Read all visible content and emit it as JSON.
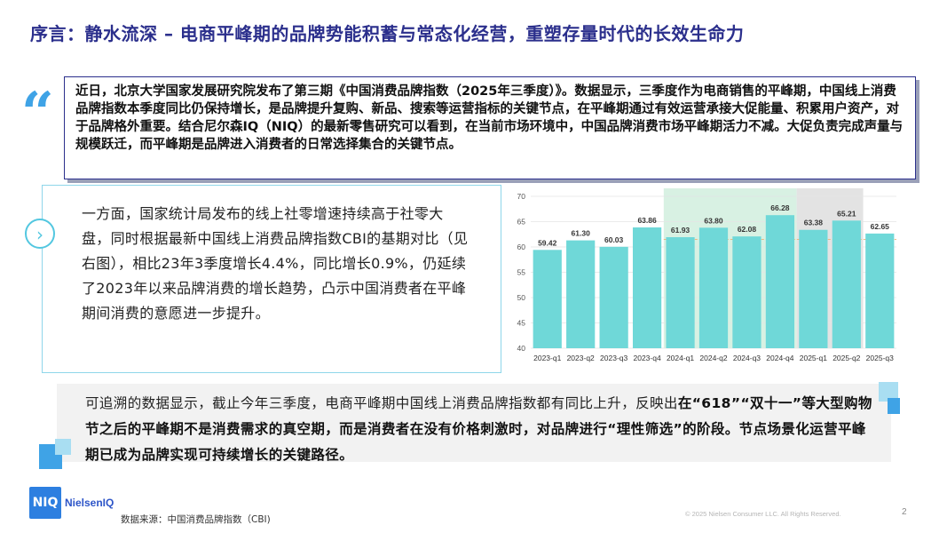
{
  "title": "序言：静水流深 – 电商平峰期的品牌势能积蓄与常态化经营，重塑存量时代的长效生命力",
  "quote": {
    "text": "近日，北京大学国家发展研究院发布了第三期《中国消费品牌指数（2025年三季度）》。数据显示，三季度作为电商销售的平峰期，中国线上消费品牌指数本季度同比仍保持增长，是品牌提升复购、新品、搜索等运营指标的关键节点，在平峰期通过有效运营承接大促能量、积累用户资产，对于品牌格外重要。结合尼尔森IQ（NIQ）的最新零售研究可以看到，在当前市场环境中，中国品牌消费市场平峰期活力不减。大促负责完成声量与规模跃迁，而平峰期是品牌进入消费者的日常选择集合的关键节点。",
    "icon": "quote-icon"
  },
  "left_panel": {
    "text": "一方面，国家统计局发布的线上社零增速持续高于社零大盘，同时根据最新中国线上消费品牌指数CBI的基期对比（见右图），相比23年3季度增长4.4%，同比增长0.9%，仍延续了2023年以来品牌消费的增长趋势，凸示中国消费者在平峰期间消费的意愿进一步提升。",
    "icon": "chevron-right-icon"
  },
  "chart_data": {
    "type": "bar",
    "categories": [
      "2023-q1",
      "2023-q2",
      "2023-q3",
      "2023-q4",
      "2024-q1",
      "2024-q2",
      "2024-q3",
      "2024-q4",
      "2025-q1",
      "2025-q2",
      "2025-q3"
    ],
    "values": [
      59.42,
      61.3,
      60.03,
      63.86,
      61.93,
      63.8,
      62.08,
      66.28,
      63.38,
      65.21,
      62.65
    ],
    "labels": [
      "59.42",
      "61.30",
      "60.03",
      "63.86",
      "61.93",
      "63.80",
      "62.08",
      "66.28",
      "63.38",
      "65.21",
      "62.65"
    ],
    "ylim": [
      40,
      70
    ],
    "yticks": [
      40,
      45,
      50,
      55,
      60,
      65,
      70
    ],
    "bar_color": "#6fd8d8",
    "highlight_2024_color": "#d8f1e3",
    "highlight_2025_color": "#e3e3e3",
    "reference_line_color": "#f0b070",
    "grid": true,
    "title": "",
    "xlabel": "",
    "ylabel": ""
  },
  "bottom": {
    "prefix": "可追溯的数据显示，截止今年三季度，电商平峰期中国线上消费品牌指数都有同比上升，反映出",
    "bold": "在“618”“双十一”等大型购物节之后的平峰期不是消费需求的真空期，而是消费者在没有价格刺激时，对品牌进行“理性筛选”的阶段。节点场景化运营平峰期已成为品牌实现可持续增长的关键路径。"
  },
  "footer": {
    "logo_mark": "NIQ",
    "logo_text": "NielsenIQ",
    "source": "数据来源：中国消费品牌指数（CBI)",
    "copyright": "© 2025 Nielsen Consumer LLC. All Rights Reserved.",
    "page": "2"
  }
}
